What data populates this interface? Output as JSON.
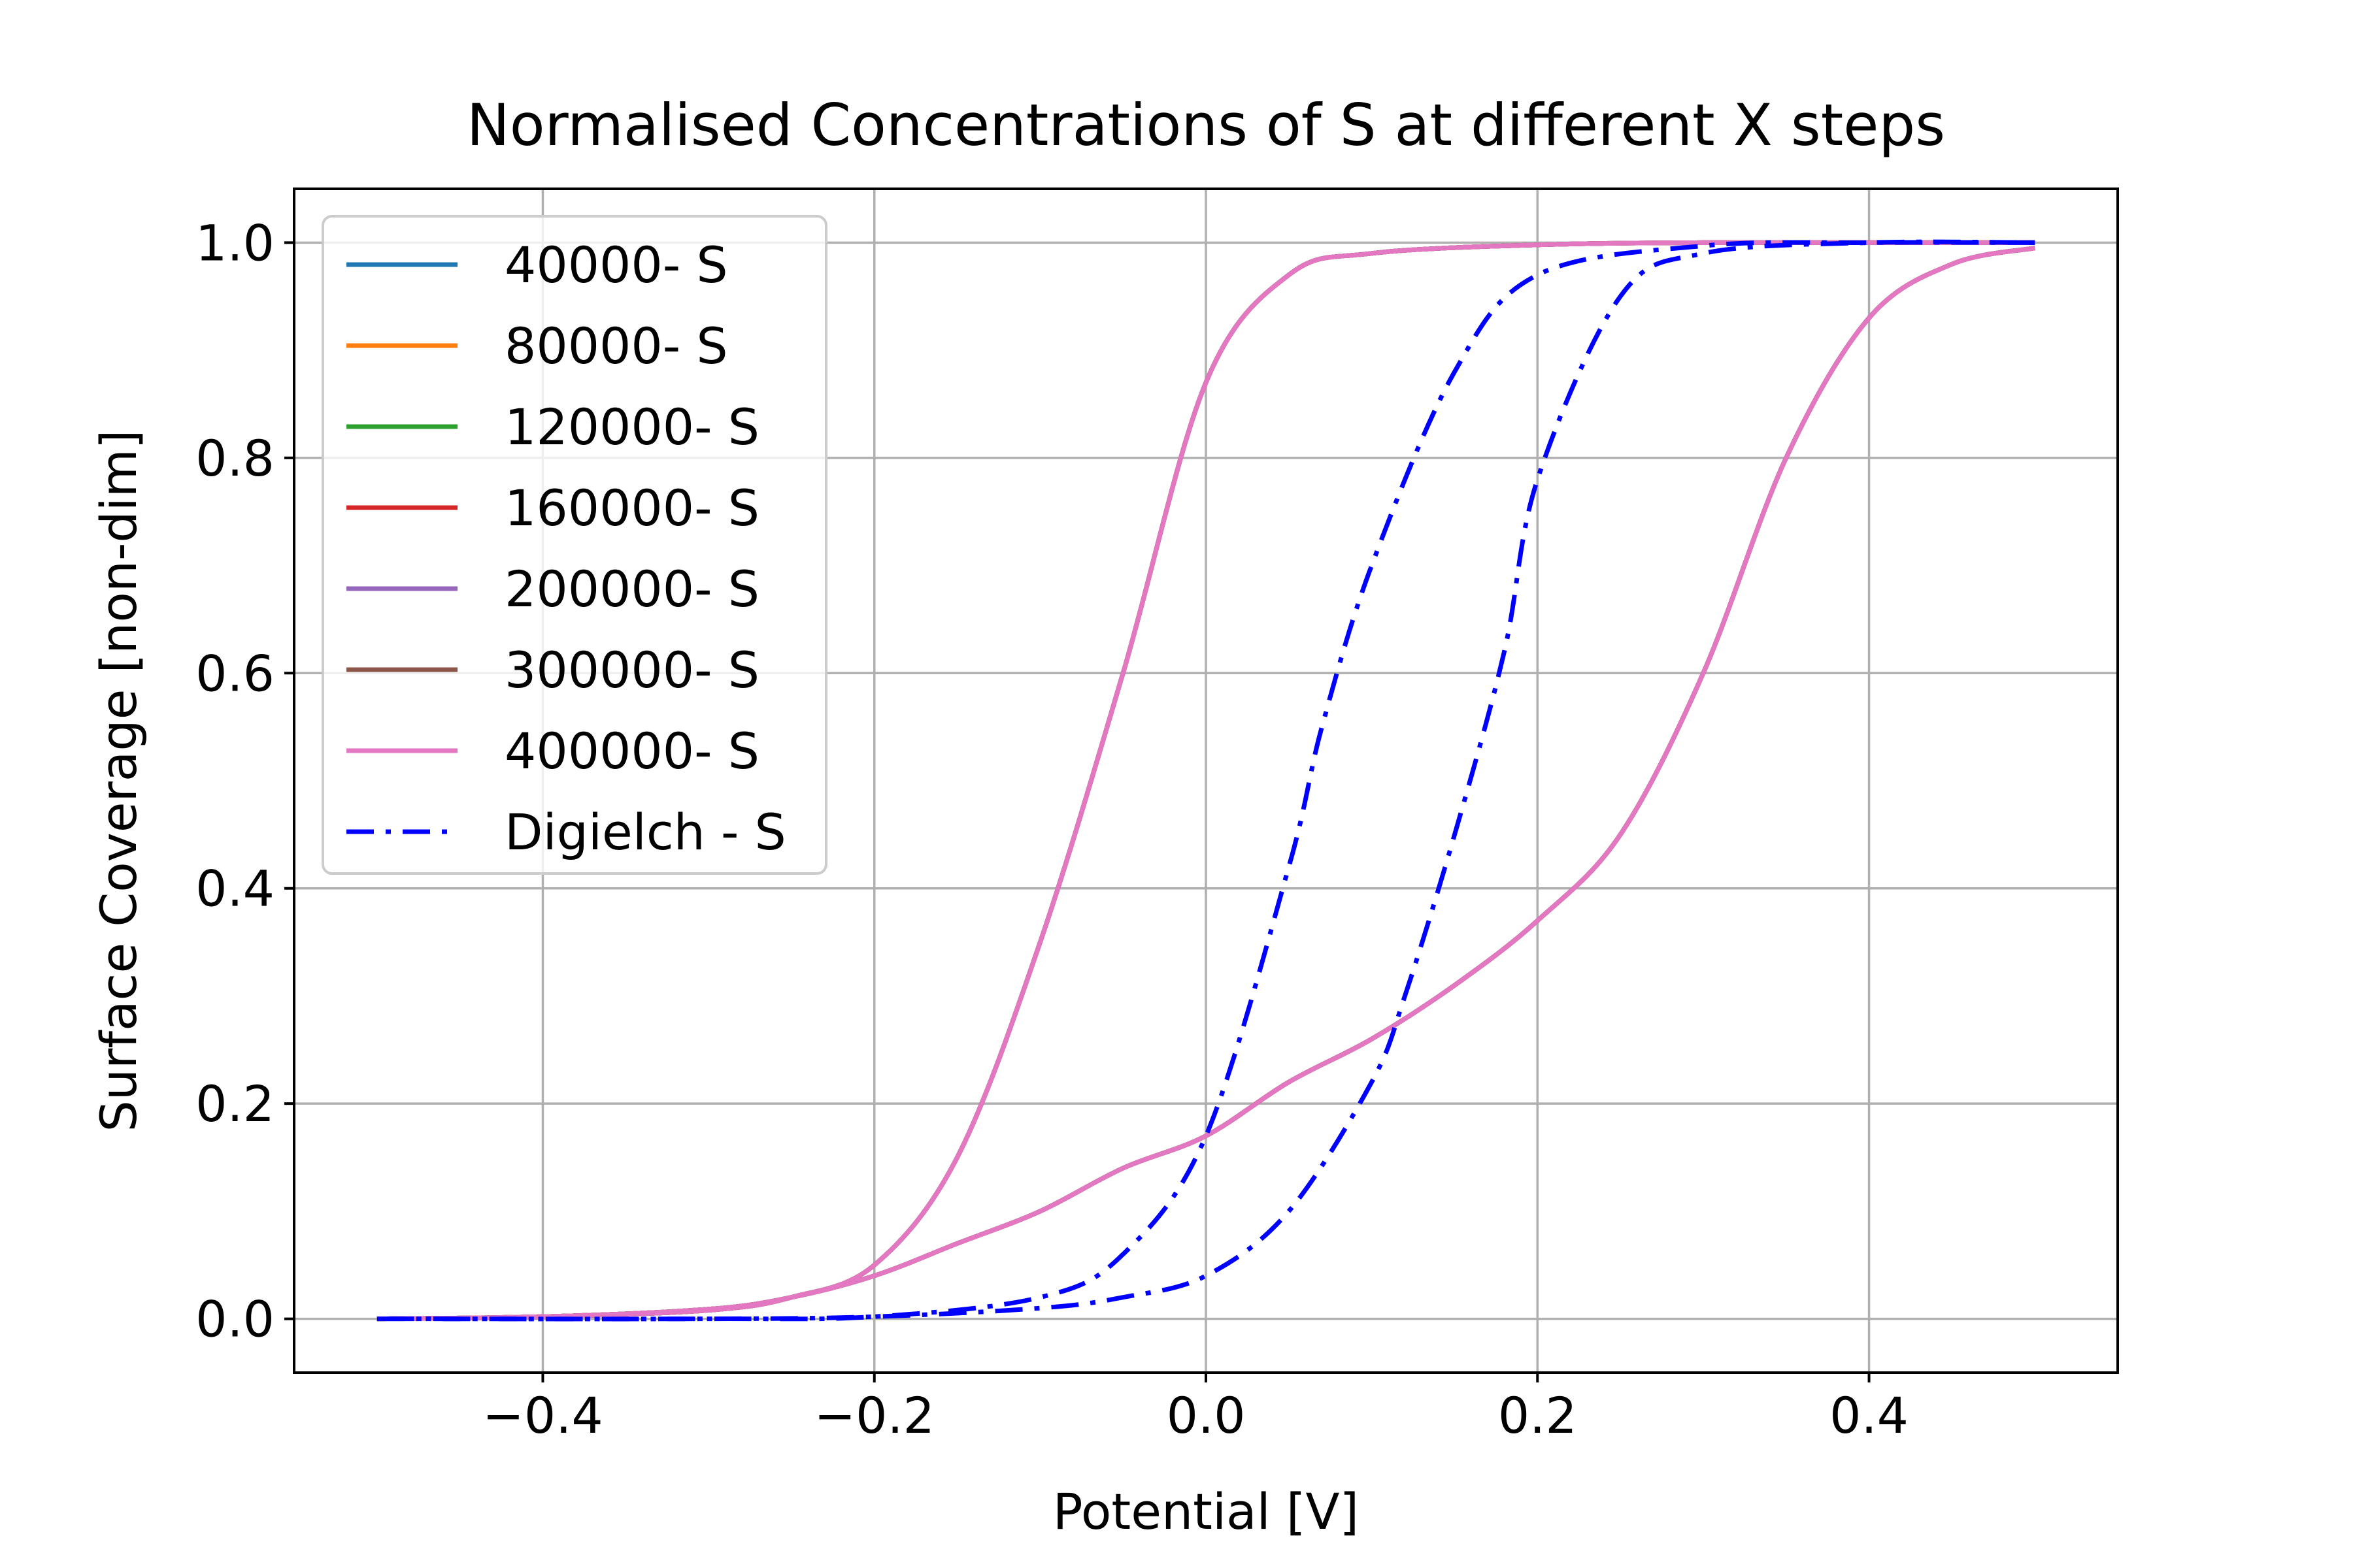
{
  "chart_data": {
    "type": "line",
    "title": "Normalised Concentrations of S at different X steps",
    "xlabel": "Potential [V]",
    "ylabel": "Surface Coverage [non-dim]",
    "xlim": [
      -0.55,
      0.55
    ],
    "ylim": [
      -0.05,
      1.05
    ],
    "xticks": [
      -0.4,
      -0.2,
      0.0,
      0.2,
      0.4
    ],
    "xtick_labels": [
      "−0.4",
      "−0.2",
      "0.0",
      "0.2",
      "0.4"
    ],
    "yticks": [
      0.0,
      0.2,
      0.4,
      0.6,
      0.8,
      1.0
    ],
    "ytick_labels": [
      "0.0",
      "0.2",
      "0.4",
      "0.6",
      "0.8",
      "1.0"
    ],
    "grid": true,
    "legend_position": "upper-left",
    "series": [
      {
        "name": "40000- S",
        "color": "#1f77b4",
        "style": "solid",
        "forward": {
          "x": [
            -0.5,
            -0.4,
            -0.3,
            -0.25,
            -0.2,
            -0.15,
            -0.1,
            -0.05,
            0.0,
            0.05,
            0.1,
            0.15,
            0.2,
            0.25,
            0.3,
            0.35,
            0.4,
            0.45,
            0.5
          ],
          "y": [
            0.0,
            0.002,
            0.009,
            0.02,
            0.04,
            0.07,
            0.1,
            0.14,
            0.17,
            0.22,
            0.26,
            0.31,
            0.37,
            0.45,
            0.6,
            0.8,
            0.93,
            0.98,
            0.995
          ]
        },
        "reverse": {
          "x": [
            0.5,
            0.4,
            0.3,
            0.2,
            0.1,
            0.05,
            0.0,
            -0.05,
            -0.1,
            -0.15,
            -0.2,
            -0.25,
            -0.3,
            -0.4,
            -0.5
          ],
          "y": [
            1.0,
            1.0,
            1.0,
            0.998,
            0.99,
            0.97,
            0.87,
            0.6,
            0.35,
            0.15,
            0.05,
            0.02,
            0.008,
            0.002,
            0.0
          ]
        }
      },
      {
        "name": "80000- S",
        "color": "#ff7f0e",
        "style": "solid",
        "forward": {
          "x": [
            -0.5,
            -0.4,
            -0.3,
            -0.25,
            -0.2,
            -0.15,
            -0.1,
            -0.05,
            0.0,
            0.05,
            0.1,
            0.15,
            0.2,
            0.25,
            0.3,
            0.35,
            0.4,
            0.45,
            0.5
          ],
          "y": [
            0.0,
            0.002,
            0.009,
            0.02,
            0.04,
            0.07,
            0.1,
            0.14,
            0.17,
            0.22,
            0.26,
            0.31,
            0.37,
            0.45,
            0.6,
            0.8,
            0.93,
            0.98,
            0.995
          ]
        },
        "reverse": {
          "x": [
            0.5,
            0.4,
            0.3,
            0.2,
            0.1,
            0.05,
            0.0,
            -0.05,
            -0.1,
            -0.15,
            -0.2,
            -0.25,
            -0.3,
            -0.4,
            -0.5
          ],
          "y": [
            1.0,
            1.0,
            1.0,
            0.998,
            0.99,
            0.97,
            0.87,
            0.6,
            0.35,
            0.15,
            0.05,
            0.02,
            0.008,
            0.002,
            0.0
          ]
        }
      },
      {
        "name": "120000- S",
        "color": "#2ca02c",
        "style": "solid",
        "forward": {
          "x": [
            -0.5,
            -0.4,
            -0.3,
            -0.25,
            -0.2,
            -0.15,
            -0.1,
            -0.05,
            0.0,
            0.05,
            0.1,
            0.15,
            0.2,
            0.25,
            0.3,
            0.35,
            0.4,
            0.45,
            0.5
          ],
          "y": [
            0.0,
            0.002,
            0.009,
            0.02,
            0.04,
            0.07,
            0.1,
            0.14,
            0.17,
            0.22,
            0.26,
            0.31,
            0.37,
            0.45,
            0.6,
            0.8,
            0.93,
            0.98,
            0.995
          ]
        },
        "reverse": {
          "x": [
            0.5,
            0.4,
            0.3,
            0.2,
            0.1,
            0.05,
            0.0,
            -0.05,
            -0.1,
            -0.15,
            -0.2,
            -0.25,
            -0.3,
            -0.4,
            -0.5
          ],
          "y": [
            1.0,
            1.0,
            1.0,
            0.998,
            0.99,
            0.97,
            0.87,
            0.6,
            0.35,
            0.15,
            0.05,
            0.02,
            0.008,
            0.002,
            0.0
          ]
        }
      },
      {
        "name": "160000- S",
        "color": "#d62728",
        "style": "solid",
        "forward": {
          "x": [
            -0.5,
            -0.4,
            -0.3,
            -0.25,
            -0.2,
            -0.15,
            -0.1,
            -0.05,
            0.0,
            0.05,
            0.1,
            0.15,
            0.2,
            0.25,
            0.3,
            0.35,
            0.4,
            0.45,
            0.5
          ],
          "y": [
            0.0,
            0.002,
            0.009,
            0.02,
            0.04,
            0.07,
            0.1,
            0.14,
            0.17,
            0.22,
            0.26,
            0.31,
            0.37,
            0.45,
            0.6,
            0.8,
            0.93,
            0.98,
            0.995
          ]
        },
        "reverse": {
          "x": [
            0.5,
            0.4,
            0.3,
            0.2,
            0.1,
            0.05,
            0.0,
            -0.05,
            -0.1,
            -0.15,
            -0.2,
            -0.25,
            -0.3,
            -0.4,
            -0.5
          ],
          "y": [
            1.0,
            1.0,
            1.0,
            0.998,
            0.99,
            0.97,
            0.87,
            0.6,
            0.35,
            0.15,
            0.05,
            0.02,
            0.008,
            0.002,
            0.0
          ]
        }
      },
      {
        "name": "200000- S",
        "color": "#9467bd",
        "style": "solid",
        "forward": {
          "x": [
            -0.5,
            -0.4,
            -0.3,
            -0.25,
            -0.2,
            -0.15,
            -0.1,
            -0.05,
            0.0,
            0.05,
            0.1,
            0.15,
            0.2,
            0.25,
            0.3,
            0.35,
            0.4,
            0.45,
            0.5
          ],
          "y": [
            0.0,
            0.002,
            0.009,
            0.02,
            0.04,
            0.07,
            0.1,
            0.14,
            0.17,
            0.22,
            0.26,
            0.31,
            0.37,
            0.45,
            0.6,
            0.8,
            0.93,
            0.98,
            0.995
          ]
        },
        "reverse": {
          "x": [
            0.5,
            0.4,
            0.3,
            0.2,
            0.1,
            0.05,
            0.0,
            -0.05,
            -0.1,
            -0.15,
            -0.2,
            -0.25,
            -0.3,
            -0.4,
            -0.5
          ],
          "y": [
            1.0,
            1.0,
            1.0,
            0.998,
            0.99,
            0.97,
            0.87,
            0.6,
            0.35,
            0.15,
            0.05,
            0.02,
            0.008,
            0.002,
            0.0
          ]
        }
      },
      {
        "name": "300000- S",
        "color": "#8c564b",
        "style": "solid",
        "forward": {
          "x": [
            -0.5,
            -0.4,
            -0.3,
            -0.25,
            -0.2,
            -0.15,
            -0.1,
            -0.05,
            0.0,
            0.05,
            0.1,
            0.15,
            0.2,
            0.25,
            0.3,
            0.35,
            0.4,
            0.45,
            0.5
          ],
          "y": [
            0.0,
            0.002,
            0.009,
            0.02,
            0.04,
            0.07,
            0.1,
            0.14,
            0.17,
            0.22,
            0.26,
            0.31,
            0.37,
            0.45,
            0.6,
            0.8,
            0.93,
            0.98,
            0.995
          ]
        },
        "reverse": {
          "x": [
            0.5,
            0.4,
            0.3,
            0.2,
            0.1,
            0.05,
            0.0,
            -0.05,
            -0.1,
            -0.15,
            -0.2,
            -0.25,
            -0.3,
            -0.4,
            -0.5
          ],
          "y": [
            1.0,
            1.0,
            1.0,
            0.998,
            0.99,
            0.97,
            0.87,
            0.6,
            0.35,
            0.15,
            0.05,
            0.02,
            0.008,
            0.002,
            0.0
          ]
        }
      },
      {
        "name": "400000- S",
        "color": "#e377c2",
        "style": "solid",
        "forward": {
          "x": [
            -0.5,
            -0.4,
            -0.3,
            -0.25,
            -0.2,
            -0.15,
            -0.1,
            -0.05,
            0.0,
            0.05,
            0.1,
            0.15,
            0.2,
            0.25,
            0.3,
            0.35,
            0.4,
            0.45,
            0.5
          ],
          "y": [
            0.0,
            0.002,
            0.009,
            0.02,
            0.04,
            0.07,
            0.1,
            0.14,
            0.17,
            0.22,
            0.26,
            0.31,
            0.37,
            0.45,
            0.6,
            0.8,
            0.93,
            0.98,
            0.995
          ]
        },
        "reverse": {
          "x": [
            0.5,
            0.4,
            0.3,
            0.2,
            0.1,
            0.05,
            0.0,
            -0.05,
            -0.1,
            -0.15,
            -0.2,
            -0.25,
            -0.3,
            -0.4,
            -0.5
          ],
          "y": [
            1.0,
            1.0,
            1.0,
            0.998,
            0.99,
            0.97,
            0.87,
            0.6,
            0.35,
            0.15,
            0.05,
            0.02,
            0.008,
            0.002,
            0.0
          ]
        }
      },
      {
        "name": "Digielch - S",
        "color": "#0000ff",
        "style": "dashdot",
        "forward": {
          "x": [
            -0.5,
            -0.3,
            -0.2,
            -0.1,
            -0.05,
            0.0,
            0.05,
            0.1,
            0.12,
            0.15,
            0.18,
            0.2,
            0.25,
            0.3,
            0.4,
            0.5
          ],
          "y": [
            0.0,
            0.0,
            0.002,
            0.01,
            0.02,
            0.04,
            0.1,
            0.22,
            0.3,
            0.45,
            0.62,
            0.78,
            0.95,
            0.99,
            1.0,
            1.0
          ]
        },
        "reverse": {
          "x": [
            0.5,
            0.4,
            0.3,
            0.2,
            0.15,
            0.1,
            0.07,
            0.05,
            0.0,
            -0.05,
            -0.1,
            -0.2,
            -0.3,
            -0.5
          ],
          "y": [
            1.0,
            1.0,
            0.997,
            0.97,
            0.88,
            0.7,
            0.55,
            0.42,
            0.17,
            0.06,
            0.02,
            0.002,
            0.0,
            0.0
          ]
        }
      }
    ]
  }
}
